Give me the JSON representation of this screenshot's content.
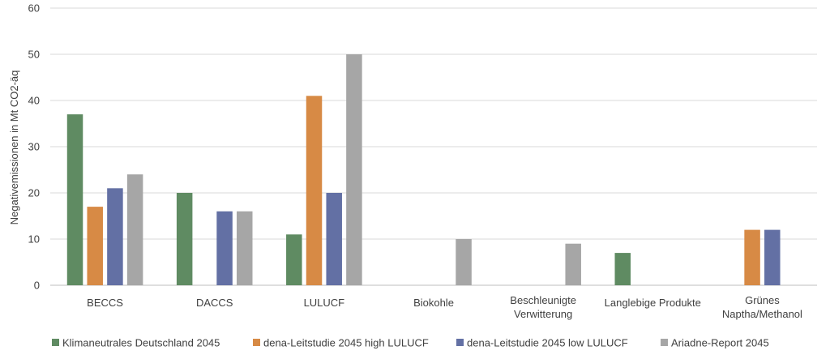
{
  "chart_data": {
    "type": "bar",
    "ylabel": "Negativemissionen in Mt CO2-äq",
    "ylim": [
      0,
      60
    ],
    "yticks": [
      0,
      10,
      20,
      30,
      40,
      50,
      60
    ],
    "grid": true,
    "legend_position": "bottom",
    "categories": [
      [
        "BECCS"
      ],
      [
        "DACCS"
      ],
      [
        "LULUCF"
      ],
      [
        "Biokohle"
      ],
      [
        "Beschleunigte",
        "Verwitterung"
      ],
      [
        "Langlebige Produkte"
      ],
      [
        "Grünes",
        "Naptha/Methanol"
      ]
    ],
    "series": [
      {
        "name": "Klimaneutrales Deutschland 2045",
        "color": "#5f8b62",
        "values": [
          37,
          20,
          11,
          null,
          null,
          7,
          null
        ]
      },
      {
        "name": "dena-Leitstudie 2045 high LULUCF",
        "color": "#d78a45",
        "values": [
          17,
          null,
          41,
          null,
          null,
          null,
          12
        ]
      },
      {
        "name": "dena-Leitstudie 2045 low LULUCF",
        "color": "#6370a4",
        "values": [
          21,
          16,
          20,
          null,
          null,
          null,
          12
        ]
      },
      {
        "name": "Ariadne-Report 2045",
        "color": "#a6a6a6",
        "values": [
          24,
          16,
          50,
          10,
          9,
          null,
          null
        ]
      }
    ]
  }
}
